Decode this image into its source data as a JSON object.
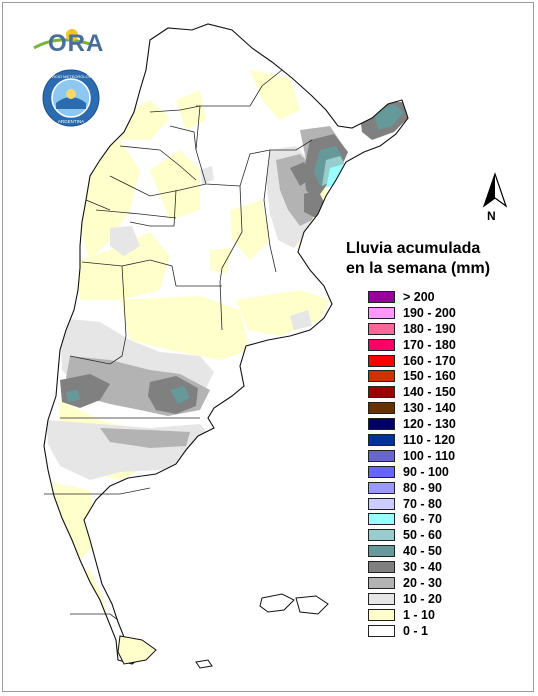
{
  "logos": {
    "ora": {
      "text": "ORA",
      "icon": "ora-logo"
    },
    "smn": {
      "icon": "smn-logo",
      "ring_text": "SERVICIO METEOROLÓGICO NACIONAL · ARGENTINA"
    }
  },
  "north_arrow": {
    "label": "N"
  },
  "legend": {
    "title_line1": "Lluvia acumulada",
    "title_line2": "en la semana (mm)",
    "items": [
      {
        "label": "> 200",
        "color": "#990099"
      },
      {
        "label": "190 - 200",
        "color": "#ff99ff"
      },
      {
        "label": "180 - 190",
        "color": "#ff6699"
      },
      {
        "label": "170 - 180",
        "color": "#ff0066"
      },
      {
        "label": "160 - 170",
        "color": "#ff0000"
      },
      {
        "label": "150 - 160",
        "color": "#cc3300"
      },
      {
        "label": "140 - 150",
        "color": "#990000"
      },
      {
        "label": "130 - 140",
        "color": "#663300"
      },
      {
        "label": "120 - 130",
        "color": "#000066"
      },
      {
        "label": "110 - 120",
        "color": "#003399"
      },
      {
        "label": "100 - 110",
        "color": "#6666cc"
      },
      {
        "label": "90 - 100",
        "color": "#6666ff"
      },
      {
        "label": "80 - 90",
        "color": "#9999ff"
      },
      {
        "label": "70 - 80",
        "color": "#ccccff"
      },
      {
        "label": "60 - 70",
        "color": "#99ffff"
      },
      {
        "label": "50 - 60",
        "color": "#99cccc"
      },
      {
        "label": "40 - 50",
        "color": "#669999"
      },
      {
        "label": "30 - 40",
        "color": "#808080"
      },
      {
        "label": "20 - 30",
        "color": "#b3b3b3"
      },
      {
        "label": "10 - 20",
        "color": "#e6e6e6"
      },
      {
        "label": "1 - 10",
        "color": "#ffffcc"
      },
      {
        "label": "0 - 1",
        "color": "#ffffff"
      }
    ]
  }
}
